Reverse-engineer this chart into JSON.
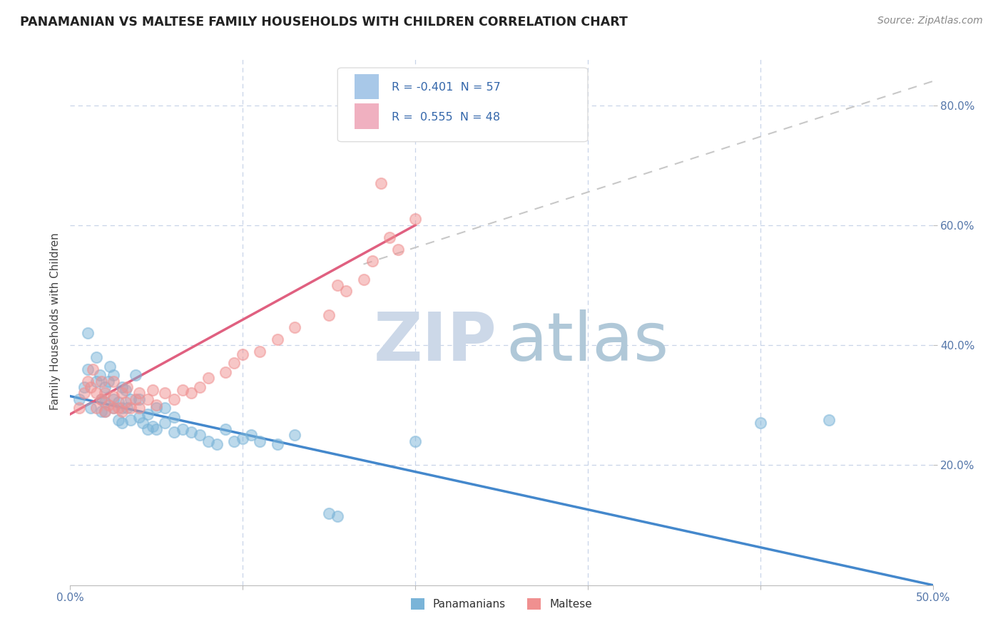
{
  "title": "PANAMANIAN VS MALTESE FAMILY HOUSEHOLDS WITH CHILDREN CORRELATION CHART",
  "source": "Source: ZipAtlas.com",
  "ylabel": "Family Households with Children",
  "xlim": [
    0.0,
    0.5
  ],
  "ylim": [
    0.0,
    0.88
  ],
  "xtick_labels": [
    "0.0%",
    "",
    "",
    "",
    "",
    "50.0%"
  ],
  "xtick_vals": [
    0.0,
    0.1,
    0.2,
    0.3,
    0.4,
    0.5
  ],
  "ytick_labels": [
    "20.0%",
    "40.0%",
    "60.0%",
    "80.0%"
  ],
  "ytick_vals": [
    0.2,
    0.4,
    0.6,
    0.8
  ],
  "panamanian_color": "#7ab4d8",
  "maltese_color": "#f09090",
  "trend_pan_color": "#4488cc",
  "trend_mal_color": "#e06080",
  "ref_line_color": "#c8c8c8",
  "background_color": "#ffffff",
  "grid_color": "#c8d4e8",
  "watermark_zip_color": "#ccd8e8",
  "watermark_atlas_color": "#b0c8d8",
  "pan_R": -0.401,
  "pan_N": 57,
  "mal_R": 0.555,
  "mal_N": 48,
  "legend_blue_color": "#a8c8e8",
  "legend_pink_color": "#f0b0c0",
  "legend_text_color": "#3366aa",
  "pan_trend_x": [
    0.0,
    0.5
  ],
  "pan_trend_y": [
    0.315,
    0.0
  ],
  "mal_trend_x": [
    0.0,
    0.2
  ],
  "mal_trend_y": [
    0.285,
    0.6
  ],
  "ref_line_x": [
    0.17,
    0.5
  ],
  "ref_line_y": [
    0.535,
    0.84
  ],
  "pan_scatter_x": [
    0.005,
    0.008,
    0.01,
    0.01,
    0.012,
    0.015,
    0.015,
    0.017,
    0.018,
    0.018,
    0.02,
    0.02,
    0.02,
    0.022,
    0.023,
    0.025,
    0.025,
    0.025,
    0.028,
    0.028,
    0.03,
    0.03,
    0.03,
    0.032,
    0.033,
    0.035,
    0.035,
    0.038,
    0.04,
    0.04,
    0.042,
    0.045,
    0.045,
    0.048,
    0.05,
    0.05,
    0.055,
    0.055,
    0.06,
    0.06,
    0.065,
    0.07,
    0.075,
    0.08,
    0.085,
    0.09,
    0.095,
    0.1,
    0.105,
    0.11,
    0.12,
    0.13,
    0.15,
    0.155,
    0.2,
    0.4,
    0.44
  ],
  "pan_scatter_y": [
    0.31,
    0.33,
    0.36,
    0.42,
    0.295,
    0.34,
    0.38,
    0.35,
    0.29,
    0.31,
    0.29,
    0.305,
    0.33,
    0.34,
    0.365,
    0.295,
    0.31,
    0.35,
    0.275,
    0.305,
    0.27,
    0.295,
    0.33,
    0.325,
    0.295,
    0.275,
    0.31,
    0.35,
    0.28,
    0.31,
    0.27,
    0.26,
    0.285,
    0.265,
    0.26,
    0.295,
    0.27,
    0.295,
    0.255,
    0.28,
    0.26,
    0.255,
    0.25,
    0.24,
    0.235,
    0.26,
    0.24,
    0.245,
    0.25,
    0.24,
    0.235,
    0.25,
    0.12,
    0.115,
    0.24,
    0.27,
    0.275
  ],
  "mal_scatter_x": [
    0.005,
    0.008,
    0.01,
    0.012,
    0.013,
    0.015,
    0.015,
    0.018,
    0.018,
    0.02,
    0.02,
    0.022,
    0.025,
    0.025,
    0.025,
    0.028,
    0.03,
    0.03,
    0.032,
    0.033,
    0.035,
    0.038,
    0.04,
    0.04,
    0.045,
    0.048,
    0.05,
    0.055,
    0.06,
    0.065,
    0.07,
    0.075,
    0.08,
    0.09,
    0.095,
    0.1,
    0.11,
    0.12,
    0.13,
    0.15,
    0.155,
    0.16,
    0.17,
    0.175,
    0.18,
    0.185,
    0.19,
    0.2
  ],
  "mal_scatter_y": [
    0.295,
    0.32,
    0.34,
    0.33,
    0.36,
    0.295,
    0.32,
    0.31,
    0.34,
    0.29,
    0.32,
    0.3,
    0.295,
    0.315,
    0.34,
    0.295,
    0.29,
    0.32,
    0.305,
    0.33,
    0.295,
    0.31,
    0.295,
    0.32,
    0.31,
    0.325,
    0.3,
    0.32,
    0.31,
    0.325,
    0.32,
    0.33,
    0.345,
    0.355,
    0.37,
    0.385,
    0.39,
    0.41,
    0.43,
    0.45,
    0.5,
    0.49,
    0.51,
    0.54,
    0.67,
    0.58,
    0.56,
    0.61
  ]
}
